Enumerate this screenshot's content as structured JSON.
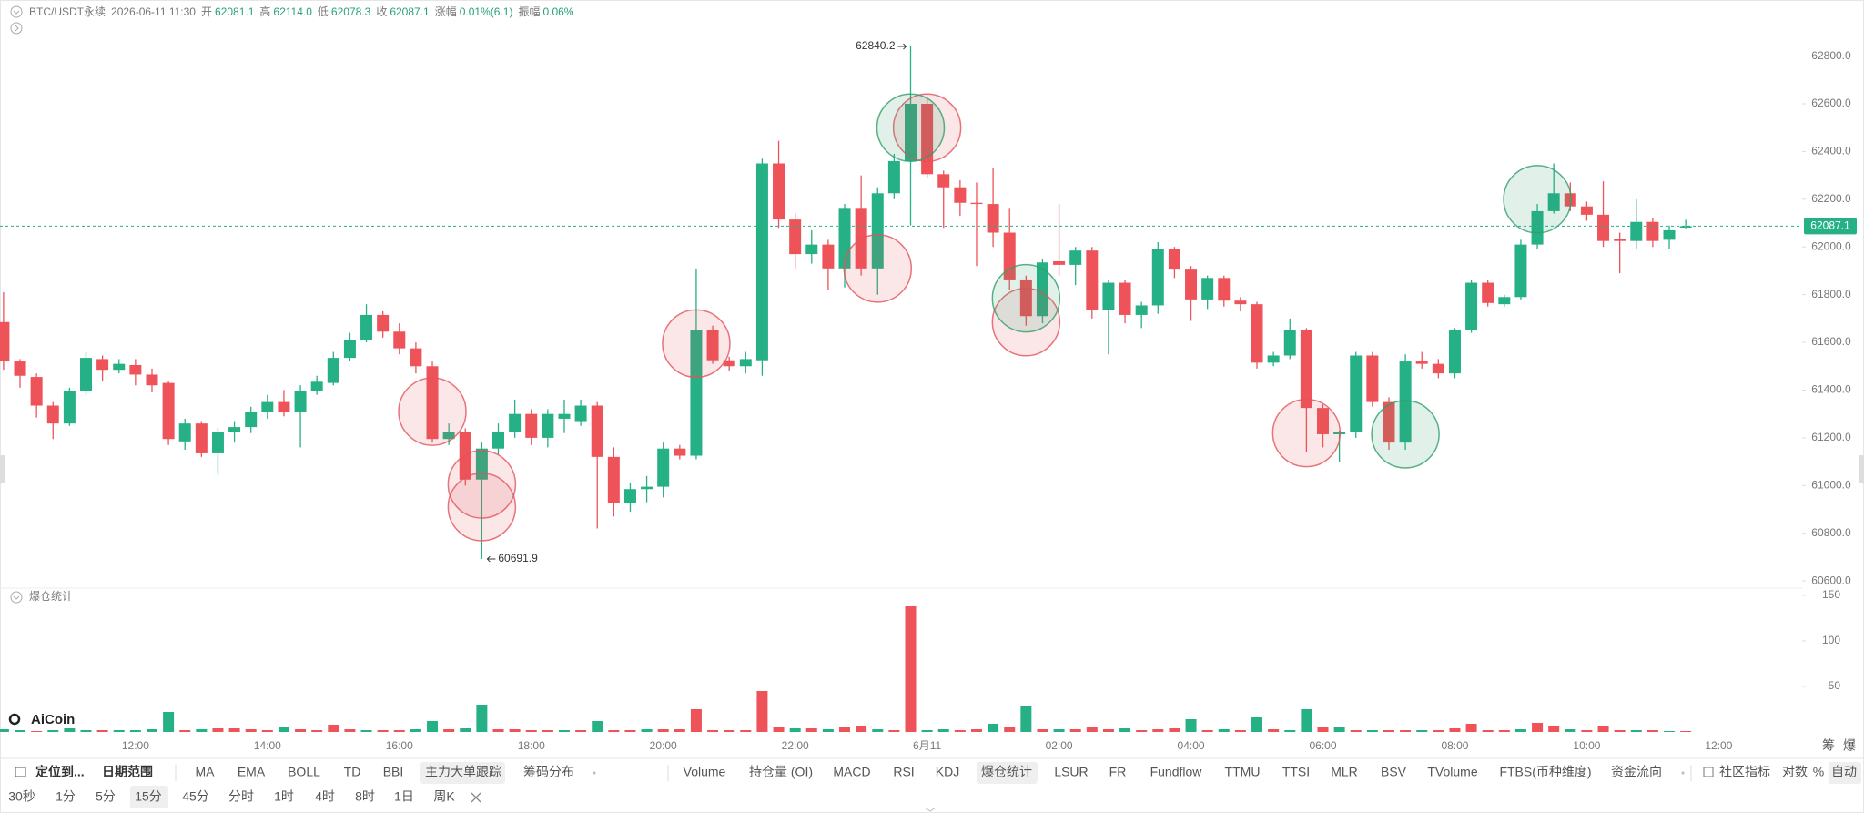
{
  "header": {
    "symbol": "BTC/USDT永续",
    "datetime": "2026-06-11 11:30",
    "open_label": "开",
    "open": "62081.1",
    "high_label": "高",
    "high": "62114.0",
    "low_label": "低",
    "low": "62078.3",
    "close_label": "收",
    "close": "62087.1",
    "change_label": "涨幅",
    "change": "0.01%(6.1)",
    "amplitude_label": "振幅",
    "amplitude": "0.06%"
  },
  "logo": "AiCoin",
  "axis_tabs": [
    "筹",
    "爆"
  ],
  "toolbar": {
    "locate": "定位到...",
    "date_range": "日期范围",
    "overlays": [
      "MA",
      "EMA",
      "BOLL",
      "TD",
      "BBI",
      "主力大单跟踪",
      "筹码分布"
    ],
    "subcharts": [
      "Volume",
      "持仓量 (OI)",
      "MACD",
      "RSI",
      "KDJ",
      "爆仓统计",
      "LSUR",
      "FR",
      "Fundflow",
      "TTMU",
      "TTSI",
      "MLR",
      "BSV",
      "TVolume",
      "FTBS(币种维度)",
      "资金流向"
    ],
    "tools": [
      "社区指标",
      "对数",
      "%",
      "自动"
    ],
    "intervals": [
      "30秒",
      "1分",
      "5分",
      "15分",
      "45分",
      "分时",
      "1时",
      "4时",
      "8时",
      "1日",
      "周K"
    ]
  },
  "chart_data": [
    {
      "type": "candlestick",
      "up_color": "#26b085",
      "down_color": "#ee5359",
      "categories": [
        null,
        null,
        null,
        null,
        null,
        null,
        null,
        null,
        "12:00",
        null,
        null,
        null,
        null,
        null,
        null,
        null,
        "14:00",
        null,
        null,
        null,
        null,
        null,
        null,
        null,
        "16:00",
        null,
        null,
        null,
        null,
        null,
        null,
        null,
        "18:00",
        null,
        null,
        null,
        null,
        null,
        null,
        null,
        "20:00",
        null,
        null,
        null,
        null,
        null,
        null,
        null,
        "22:00",
        null,
        null,
        null,
        null,
        null,
        null,
        null,
        "6月11",
        null,
        null,
        null,
        null,
        null,
        null,
        null,
        "02:00",
        null,
        null,
        null,
        null,
        null,
        null,
        null,
        "04:00",
        null,
        null,
        null,
        null,
        null,
        null,
        null,
        "06:00",
        null,
        null,
        null,
        null,
        null,
        null,
        null,
        "08:00",
        null,
        null,
        null,
        null,
        null,
        null,
        null,
        "10:00",
        null,
        null,
        null,
        null,
        null,
        null,
        null,
        "12:00"
      ],
      "open": [
        61685,
        61520,
        61455,
        61335,
        61260,
        61395,
        61530,
        61485,
        61505,
        61465,
        61430,
        61185,
        61260,
        61135,
        61225,
        61245,
        61310,
        61350,
        61310,
        61395,
        61430,
        61535,
        61610,
        61715,
        61645,
        61575,
        61500,
        61195,
        61225,
        61025,
        61155,
        61225,
        61300,
        61200,
        61280,
        61270,
        61335,
        61120,
        60925,
        60985,
        60995,
        61155,
        61125,
        61650,
        61525,
        61500,
        61525,
        62350,
        62115,
        61970,
        62010,
        61910,
        62160,
        61910,
        62225,
        62360,
        62600,
        62305,
        62250,
        62185,
        62180,
        62060,
        61860,
        61710,
        61940,
        61925,
        61985,
        61735,
        61850,
        61715,
        61755,
        61990,
        61905,
        61780,
        61870,
        61775,
        61760,
        61515,
        61545,
        61650,
        61325,
        61215,
        61225,
        61545,
        61350,
        61180,
        61520,
        61510,
        61470,
        61650,
        61850,
        61760,
        61790,
        62010,
        62150,
        62225,
        62170,
        62135,
        62035,
        62025,
        62105,
        62030,
        62081.1,
        null,
        null
      ],
      "high": [
        61810,
        61530,
        61470,
        61350,
        61410,
        61560,
        61545,
        61530,
        61530,
        61490,
        61440,
        61280,
        61270,
        61240,
        61270,
        61330,
        61380,
        61400,
        61420,
        61460,
        61560,
        61640,
        61760,
        61730,
        61680,
        61600,
        61520,
        61260,
        61240,
        61180,
        61260,
        61360,
        61320,
        61320,
        61360,
        61360,
        61350,
        61160,
        61010,
        61040,
        61180,
        61170,
        61910,
        61670,
        61540,
        61560,
        62370,
        62445,
        62140,
        62070,
        62030,
        62180,
        62300,
        62250,
        62390,
        62840.2,
        62620,
        62320,
        62280,
        62270,
        62330,
        62160,
        61880,
        61950,
        62180,
        62000,
        62000,
        61860,
        61860,
        61770,
        62020,
        62000,
        61920,
        61880,
        61880,
        61790,
        61770,
        61560,
        61700,
        61660,
        61340,
        61230,
        61560,
        61560,
        61370,
        61550,
        61560,
        61530,
        61660,
        61860,
        61860,
        61800,
        62030,
        62180,
        62350,
        62270,
        62190,
        62275,
        62060,
        62200,
        62120,
        62090,
        62114,
        null,
        null
      ],
      "low": [
        61485,
        61410,
        61285,
        61195,
        61250,
        61380,
        61440,
        61470,
        61420,
        61390,
        61170,
        61150,
        61120,
        61045,
        61180,
        61220,
        61280,
        61290,
        61160,
        61380,
        61420,
        61520,
        61600,
        61620,
        61550,
        61470,
        61180,
        61170,
        61000,
        60691.9,
        61130,
        61200,
        61170,
        61160,
        61220,
        61250,
        60820,
        60870,
        60890,
        60930,
        60950,
        61110,
        61110,
        61510,
        61480,
        61470,
        61460,
        62080,
        61910,
        61930,
        61820,
        61830,
        61880,
        61800,
        62200,
        62090,
        62290,
        62080,
        62130,
        61920,
        62000,
        61820,
        61670,
        61680,
        61880,
        61840,
        61700,
        61550,
        61680,
        61660,
        61720,
        61870,
        61690,
        61740,
        61750,
        61730,
        61490,
        61500,
        61530,
        61140,
        61160,
        61100,
        61200,
        61330,
        61150,
        61150,
        61490,
        61450,
        61450,
        61640,
        61750,
        61750,
        61780,
        61990,
        62140,
        62150,
        62110,
        62000,
        61890,
        61990,
        62000,
        61990,
        62078.3,
        null,
        null
      ],
      "close": [
        61520,
        61460,
        61335,
        61260,
        61395,
        61535,
        61485,
        61510,
        61465,
        61420,
        61195,
        61260,
        61135,
        61225,
        61245,
        61310,
        61350,
        61310,
        61395,
        61435,
        61535,
        61610,
        61715,
        61645,
        61575,
        61500,
        61195,
        61225,
        61025,
        61155,
        61225,
        61300,
        61200,
        61300,
        61300,
        61335,
        61120,
        60925,
        60985,
        60995,
        61155,
        61125,
        61650,
        61525,
        61500,
        61530,
        62350,
        62115,
        61970,
        62010,
        61910,
        62160,
        61910,
        62225,
        62360,
        62600,
        62305,
        62250,
        62185,
        62180,
        62060,
        61860,
        61710,
        61935,
        61925,
        61985,
        61735,
        61850,
        61715,
        61755,
        61990,
        61905,
        61780,
        61870,
        61775,
        61760,
        61515,
        61545,
        61650,
        61325,
        61215,
        61225,
        61545,
        61350,
        61180,
        61520,
        61510,
        61470,
        61650,
        61850,
        61765,
        61790,
        62010,
        62150,
        62225,
        62170,
        62135,
        62025,
        62025,
        62105,
        62025,
        62070,
        62087.1,
        null,
        null
      ],
      "markers": [
        {
          "color": "#e2535b",
          "values": [
            null,
            null,
            null,
            null,
            null,
            null,
            null,
            null,
            null,
            null,
            null,
            null,
            null,
            null,
            null,
            null,
            null,
            null,
            null,
            null,
            null,
            null,
            null,
            null,
            null,
            null,
            61310,
            null,
            null,
            61005,
            null,
            null,
            null,
            null,
            null,
            null,
            null,
            null,
            null,
            null,
            null,
            null,
            61595,
            null,
            null,
            null,
            null,
            null,
            null,
            null,
            null,
            null,
            null,
            61910,
            null,
            null,
            62500,
            null,
            null,
            null,
            null,
            null,
            61685,
            null,
            null,
            null,
            null,
            null,
            null,
            null,
            null,
            null,
            null,
            null,
            null,
            null,
            null,
            null,
            null,
            61220,
            null,
            null,
            null,
            null,
            null,
            null,
            null,
            null,
            null,
            null,
            null,
            null,
            null,
            null,
            null,
            null,
            null,
            null,
            null,
            null,
            null,
            null,
            null,
            null,
            null
          ]
        },
        {
          "color": "#e2535b",
          "values": [
            null,
            null,
            null,
            null,
            null,
            null,
            null,
            null,
            null,
            null,
            null,
            null,
            null,
            null,
            null,
            null,
            null,
            null,
            null,
            null,
            null,
            null,
            null,
            null,
            null,
            null,
            null,
            null,
            null,
            60910,
            null,
            null,
            null,
            null,
            null,
            null,
            null,
            null,
            null,
            null,
            null,
            null,
            null,
            null,
            null,
            null,
            null,
            null,
            null,
            null,
            null,
            null,
            null,
            null,
            null,
            null,
            null,
            null,
            null,
            null,
            null,
            null,
            null,
            null,
            null,
            null,
            null,
            null,
            null,
            null,
            null,
            null,
            null,
            null,
            null,
            null,
            null,
            null,
            null,
            null,
            null,
            null,
            null,
            null,
            null,
            null,
            null,
            null,
            null,
            null,
            null,
            null,
            null,
            null,
            null,
            null,
            null,
            null,
            null,
            null,
            null,
            null,
            null,
            null,
            null
          ]
        },
        {
          "color": "#2e9f6a",
          "values": [
            null,
            null,
            null,
            null,
            null,
            null,
            null,
            null,
            null,
            null,
            null,
            null,
            null,
            null,
            null,
            null,
            null,
            null,
            null,
            null,
            null,
            null,
            null,
            null,
            null,
            null,
            null,
            null,
            null,
            null,
            null,
            null,
            null,
            null,
            null,
            null,
            null,
            null,
            null,
            null,
            null,
            null,
            null,
            null,
            null,
            null,
            null,
            null,
            null,
            null,
            null,
            null,
            null,
            null,
            null,
            62500,
            null,
            null,
            null,
            null,
            null,
            null,
            61785,
            null,
            null,
            null,
            null,
            null,
            null,
            null,
            null,
            null,
            null,
            null,
            null,
            null,
            null,
            null,
            null,
            null,
            null,
            null,
            null,
            null,
            null,
            61215,
            null,
            null,
            null,
            null,
            null,
            null,
            null,
            62200,
            null,
            null,
            null,
            null,
            null,
            null,
            null,
            null,
            null,
            null,
            null
          ]
        }
      ],
      "ylim": [
        60570,
        62890
      ],
      "yticks": [
        {
          "value": 60600,
          "label": "60600.0"
        },
        {
          "value": 60800,
          "label": "60800.0"
        },
        {
          "value": 61000,
          "label": "61000.0"
        },
        {
          "value": 61200,
          "label": "61200.0"
        },
        {
          "value": 61400,
          "label": "61400.0"
        },
        {
          "value": 61600,
          "label": "61600.0"
        },
        {
          "value": 61800,
          "label": "61800.0"
        },
        {
          "value": 62000,
          "label": "62000.0"
        },
        {
          "value": 62200,
          "label": "62200.0"
        },
        {
          "value": 62400,
          "label": "62400.0"
        },
        {
          "value": 62600,
          "label": "62600.0"
        },
        {
          "value": 62800,
          "label": "62800.0"
        }
      ]
    },
    {
      "type": "bar",
      "title": "爆仓统计",
      "series": [
        {
          "color": "#26b085",
          "values": [
            3,
            2,
            null,
            2,
            4,
            2,
            null,
            2,
            2,
            3,
            22,
            null,
            3,
            null,
            null,
            null,
            null,
            6,
            null,
            null,
            null,
            null,
            2,
            null,
            null,
            3,
            12,
            null,
            4,
            30,
            null,
            null,
            null,
            null,
            2,
            null,
            12,
            null,
            null,
            3,
            null,
            null,
            null,
            null,
            null,
            null,
            null,
            null,
            4,
            null,
            3,
            null,
            null,
            3,
            null,
            null,
            2,
            3,
            null,
            null,
            9,
            null,
            28,
            null,
            3,
            null,
            null,
            null,
            4,
            null,
            null,
            null,
            14,
            null,
            3,
            null,
            16,
            null,
            2,
            25,
            null,
            5,
            null,
            2,
            null,
            null,
            2,
            null,
            null,
            null,
            null,
            null,
            3,
            null,
            null,
            3,
            null,
            null,
            null,
            2,
            null,
            1,
            null,
            null,
            null
          ]
        },
        {
          "color": "#ee5359",
          "values": [
            null,
            null,
            1,
            null,
            null,
            null,
            2,
            null,
            null,
            null,
            null,
            2,
            null,
            4,
            4,
            3,
            2,
            null,
            3,
            2,
            8,
            3,
            null,
            2,
            2,
            null,
            null,
            3,
            null,
            null,
            3,
            3,
            2,
            2,
            null,
            2,
            null,
            2,
            2,
            null,
            3,
            3,
            25,
            2,
            2,
            2,
            45,
            5,
            null,
            4,
            null,
            5,
            7,
            null,
            2,
            138,
            null,
            null,
            2,
            3,
            null,
            6,
            null,
            3,
            null,
            3,
            5,
            3,
            null,
            2,
            3,
            4,
            null,
            2,
            null,
            2,
            null,
            3,
            null,
            null,
            5,
            null,
            2,
            null,
            2,
            2,
            null,
            2,
            4,
            9,
            2,
            2,
            null,
            10,
            7,
            null,
            2,
            7,
            2,
            null,
            2,
            null,
            1,
            null,
            null
          ]
        }
      ],
      "ylim": [
        0,
        150
      ],
      "yticks": [
        50,
        100,
        150
      ]
    }
  ]
}
